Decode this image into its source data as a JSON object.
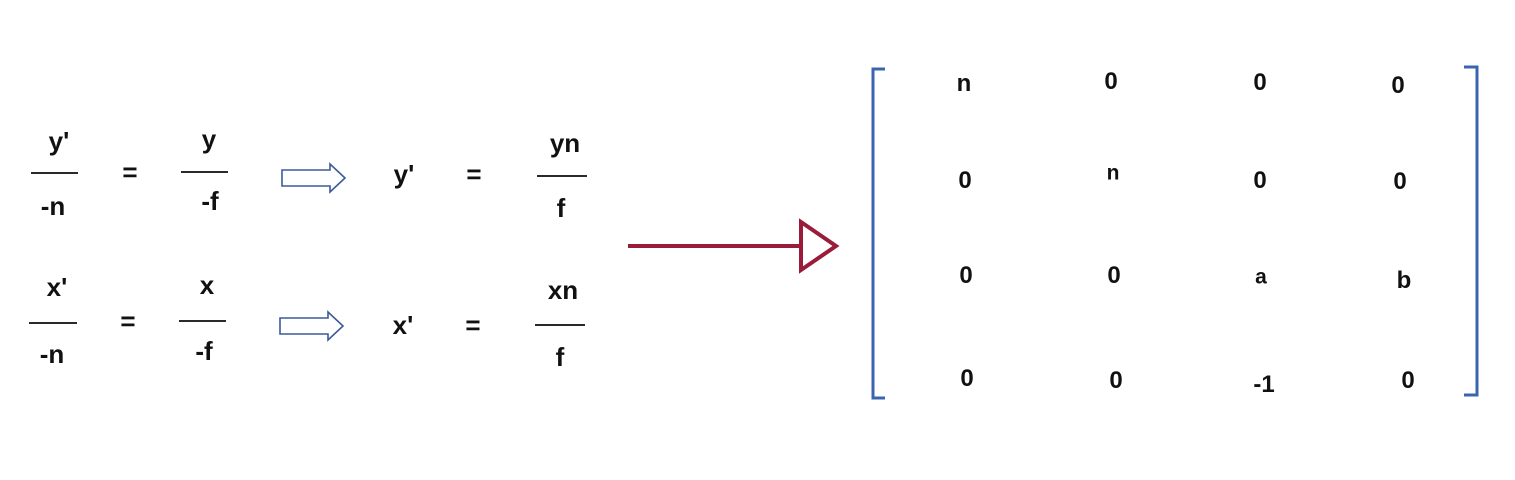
{
  "equations": [
    {
      "lhs": {
        "numerator": "y'",
        "denominator": "-n"
      },
      "equals_1": "=",
      "mid": {
        "numerator": "y",
        "denominator": "-f"
      },
      "result_var": "y'",
      "equals_2": "=",
      "rhs": {
        "numerator": "yn",
        "denominator": "f"
      }
    },
    {
      "lhs": {
        "numerator": "x'",
        "denominator": "-n"
      },
      "equals_1": "=",
      "mid": {
        "numerator": "x",
        "denominator": "-f"
      },
      "result_var": "x'",
      "equals_2": "=",
      "rhs": {
        "numerator": "xn",
        "denominator": "f"
      }
    }
  ],
  "matrix": {
    "rows": [
      [
        "n",
        "0",
        "0",
        "0"
      ],
      [
        "0",
        "n",
        "0",
        "0"
      ],
      [
        "0",
        "0",
        "a",
        "b"
      ],
      [
        "0",
        "0",
        "-1",
        "0"
      ]
    ]
  },
  "colors": {
    "text": "#111111",
    "implies_arrow_outline": "#3d5a99",
    "main_arrow": "#9b1b3a",
    "bracket": "#3b64b0"
  },
  "icons": {
    "implies": "double-line-right-arrow",
    "transform": "right-arrow"
  }
}
